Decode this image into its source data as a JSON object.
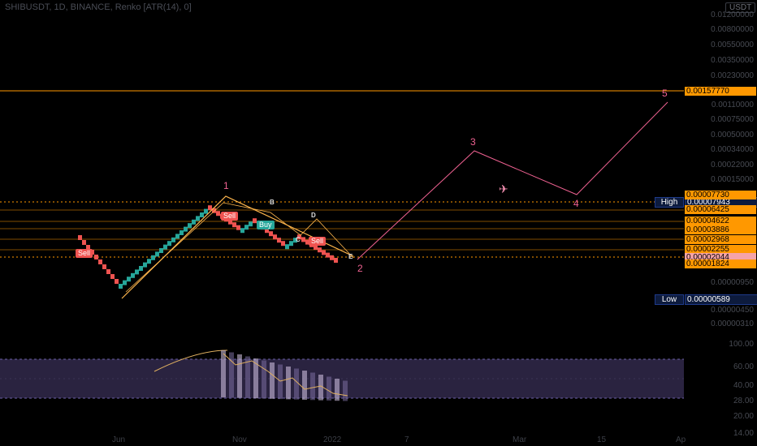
{
  "header": {
    "symbol": "SHIBUSDT, 1D, BINANCE, Renko [ATR(14), 0]",
    "currency": "USDT"
  },
  "price_scale": [
    "0.01200000",
    "0.00800000",
    "0.00550000",
    "0.00350000",
    "0.00230000",
    "0.00110000",
    "0.00075000",
    "0.00050000",
    "0.00034000",
    "0.00022000",
    "0.00015000",
    "0.00000950",
    "0.00000450",
    "0.00000310"
  ],
  "price_tags": {
    "wave5": "0.00157770",
    "high": "0.00007943",
    "t1": "0.00007730",
    "t2": "0.00006425",
    "t3": "0.00004622",
    "t4": "0.00003886",
    "t5": "0.00002968",
    "t6": "0.00002255",
    "current": "0.00002044",
    "t7": "0.00001824",
    "low": "0.00000589"
  },
  "labels": {
    "high": "High",
    "low": "Low"
  },
  "time_axis": [
    "Jun",
    "Nov",
    "2022",
    "7",
    "Mar",
    "15",
    "Ap"
  ],
  "signals": {
    "sell1": "Sell",
    "sell2": "Sell",
    "buy": "Buy",
    "sell3": "Sell"
  },
  "waves": {
    "w1": "1",
    "w2": "2",
    "w3": "3",
    "w4": "4",
    "w5": "5"
  },
  "pattern_points": {
    "b": "B",
    "c": "C",
    "d": "D",
    "e": "E"
  },
  "oscillator_scale": [
    "100.00",
    "60.00",
    "40.00",
    "28.00",
    "20.00",
    "14.00"
  ],
  "colors": {
    "up": "#26a69a",
    "down": "#ef5350",
    "level": "#ff9800",
    "wave": "#f06292",
    "band": "#2a2340"
  }
}
